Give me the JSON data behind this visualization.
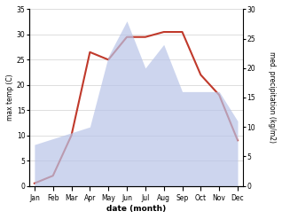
{
  "months": [
    "Jan",
    "Feb",
    "Mar",
    "Apr",
    "May",
    "Jun",
    "Jul",
    "Aug",
    "Sep",
    "Oct",
    "Nov",
    "Dec"
  ],
  "temperature": [
    0.5,
    2,
    10,
    26.5,
    25,
    29.5,
    29.5,
    30.5,
    30.5,
    22,
    18,
    9
  ],
  "precipitation": [
    7,
    8,
    9,
    10,
    22,
    28,
    20,
    24,
    16,
    16,
    16,
    11
  ],
  "temp_color": "#c0392b",
  "precip_color": "#b8c4e8",
  "temp_ylim": [
    0,
    35
  ],
  "precip_ylim": [
    0,
    30
  ],
  "temp_yticks": [
    0,
    5,
    10,
    15,
    20,
    25,
    30,
    35
  ],
  "precip_yticks": [
    0,
    5,
    10,
    15,
    20,
    25,
    30
  ],
  "xlabel": "date (month)",
  "ylabel_left": "max temp (C)",
  "ylabel_right": "med. precipitation (kg/m2)",
  "bg_color": "#ffffff",
  "figsize": [
    3.18,
    2.47
  ],
  "dpi": 100
}
